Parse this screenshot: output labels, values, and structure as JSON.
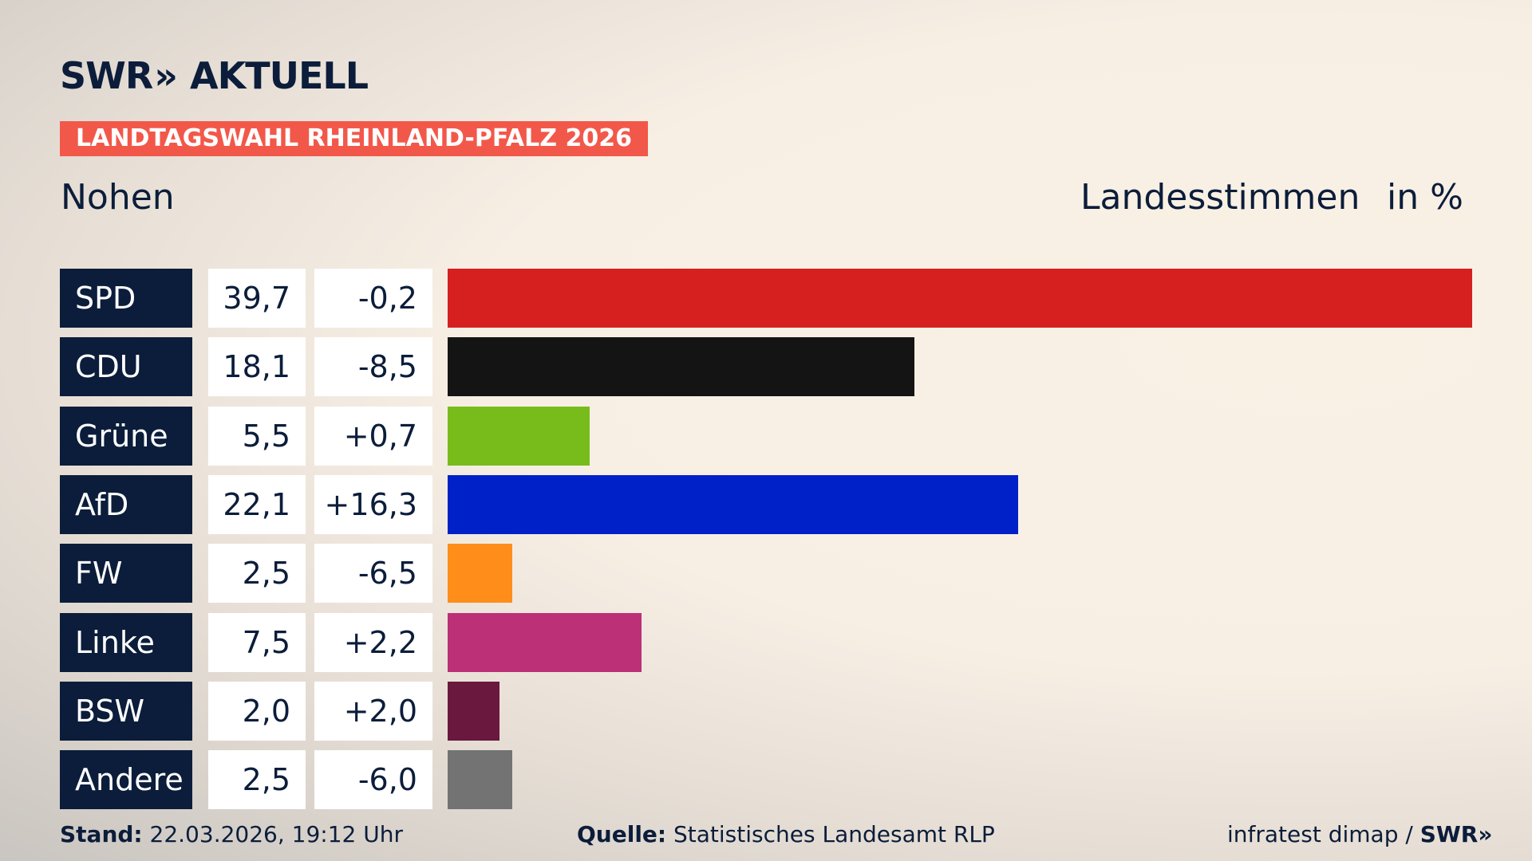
{
  "brand": {
    "logo": "SWR» AKTUELL",
    "swr": "SWR",
    "chevrons": "»",
    "aktuell": "AKTUELL"
  },
  "header": {
    "badge": "LANDTAGSWAHL RHEINLAND-PFALZ 2026",
    "place": "Nohen",
    "measure": "Landesstimmen",
    "unit": "in %"
  },
  "chart_data": {
    "type": "bar",
    "orientation": "horizontal",
    "xlim": [
      0,
      39.7
    ],
    "categories": [
      "SPD",
      "CDU",
      "Grüne",
      "AfD",
      "FW",
      "Linke",
      "BSW",
      "Andere"
    ],
    "values": [
      39.7,
      18.1,
      5.5,
      22.1,
      2.5,
      7.5,
      2.0,
      2.5
    ],
    "value_labels": [
      "39,7",
      "18,1",
      "5,5",
      "22,1",
      "2,5",
      "7,5",
      "2,0",
      "2,5"
    ],
    "diff_labels": [
      "-0,2",
      "-8,5",
      "+0,7",
      "+16,3",
      "-6,5",
      "+2,2",
      "+2,0",
      "-6,0"
    ],
    "colors": [
      "#d62020",
      "#141414",
      "#78bc1b",
      "#0021c8",
      "#ff8d1a",
      "#bb3077",
      "#6a183e",
      "#737373"
    ]
  },
  "footer": {
    "stand_label": "Stand:",
    "stand_value": "22.03.2026, 19:12 Uhr",
    "quelle_label": "Quelle:",
    "quelle_value": "Statistisches Landesamt RLP",
    "credit": "infratest dimap /",
    "credit_swr": "SWR»"
  }
}
